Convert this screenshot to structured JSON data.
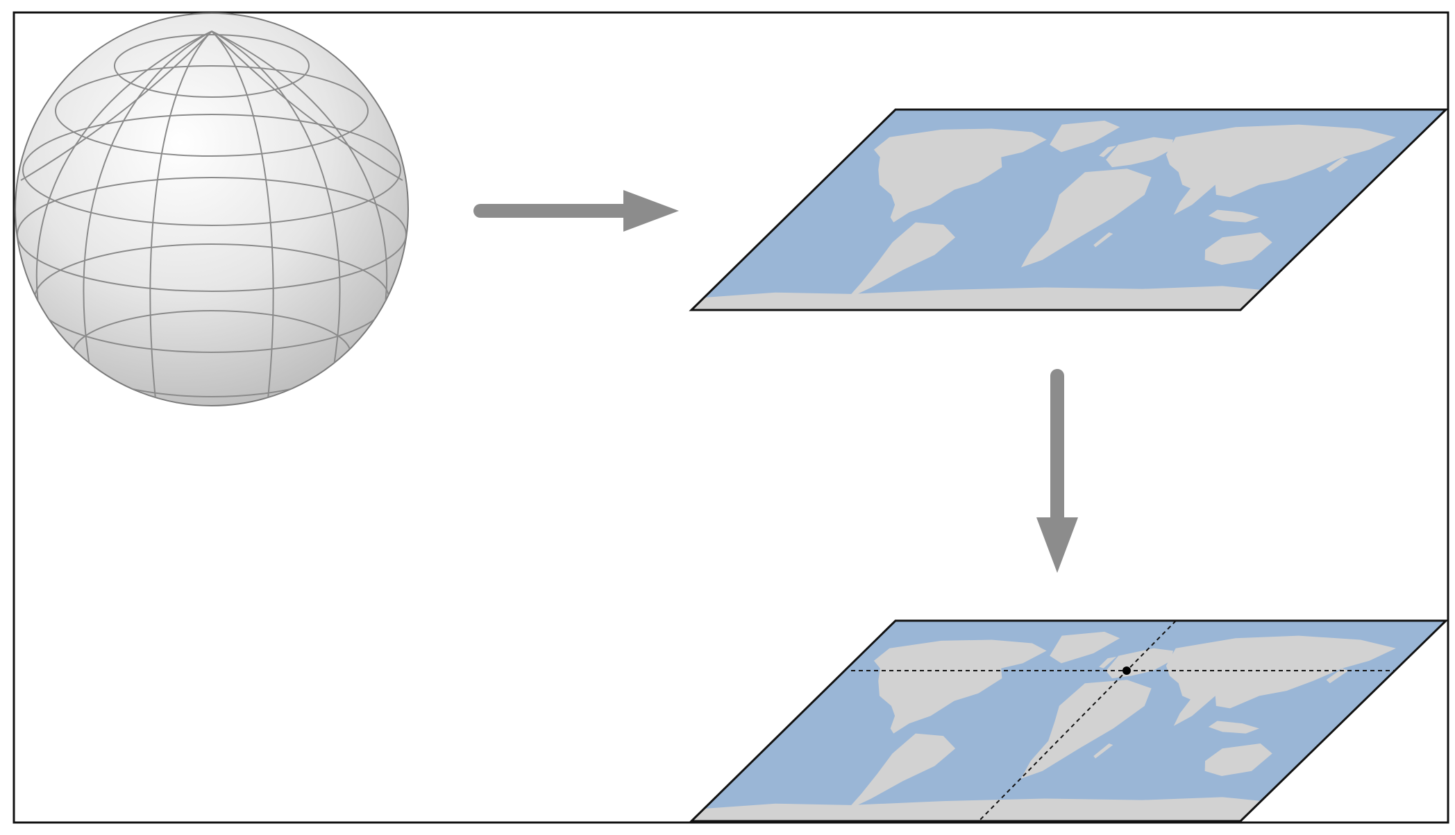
{
  "diagram": {
    "description_nodes": [
      {
        "id": "globe",
        "kind": "sphere-with-graticule"
      },
      {
        "id": "flat-map",
        "kind": "parallelogram-world-map"
      },
      {
        "id": "gridded-map",
        "kind": "parallelogram-world-map-with-reference-lines"
      }
    ],
    "edges": [
      {
        "from": "globe",
        "to": "flat-map"
      },
      {
        "from": "flat-map",
        "to": "gridded-map"
      }
    ]
  },
  "colors": {
    "ocean": "#9ab6d6",
    "land": "#d2d2d2",
    "arrow": "#8c8c8c",
    "outline": "#111111",
    "globe_fill": "#e9e9e9",
    "globe_grid": "#8a8a8a"
  }
}
